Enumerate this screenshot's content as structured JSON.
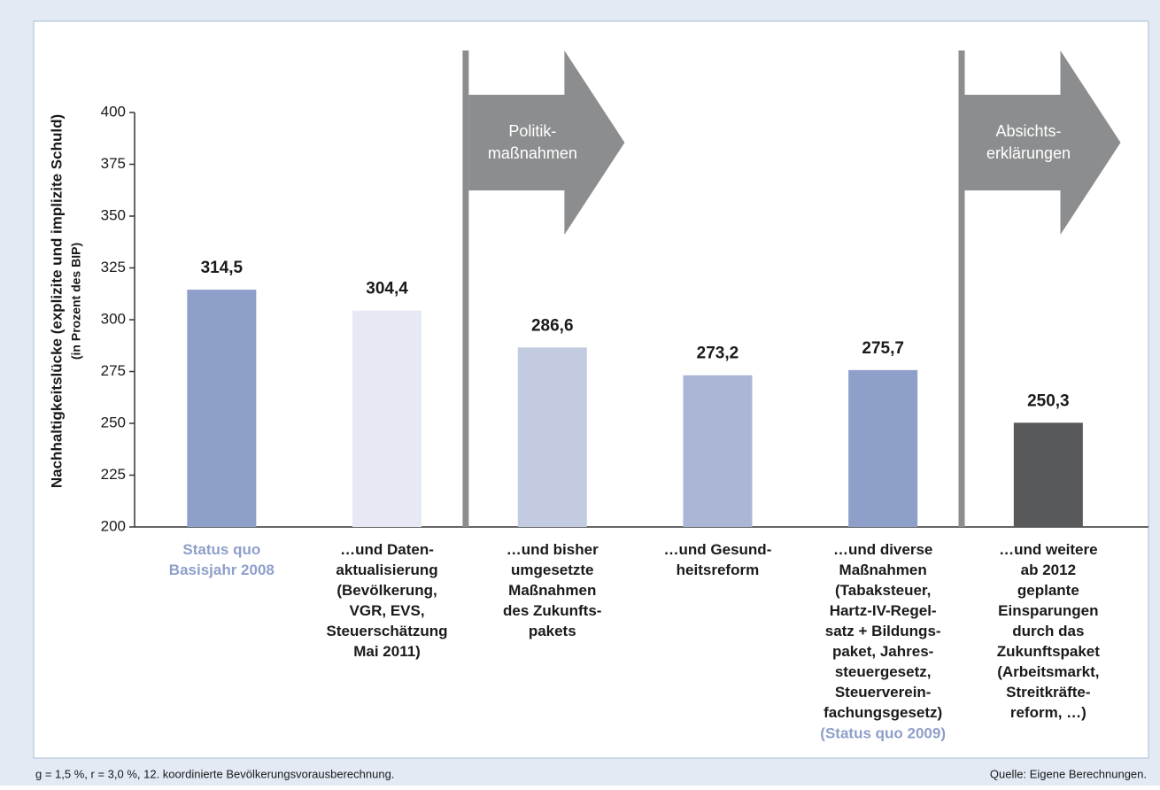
{
  "chart_data": {
    "type": "bar",
    "ylabel": "Nachhaltigkeitslücke (explizite und implizite Schuld)",
    "ysublabel": "(in Prozent des BIP)",
    "categories": [
      "Status quo\nBasisjahr 2008",
      "…und Daten-\naktualisierung\n(Bevölkerung,\nVGR, EVS,\nSteuerschätzung\nMai 2011)",
      "…und bisher\numgesetzte\nMaßnahmen\ndes Zukunfts-\npakets",
      "…und Gesund-\nheitsreform",
      "…und diverse\nMaßnahmen\n(Tabaksteuer,\nHartz-IV-Regel-\nsatz + Bildungs-\npaket, Jahres-\nsteuergesetz,\nSteuerverein-\nfachungsgesetz)",
      "…und weitere\nab 2012\ngeplante\nEinsparungen\ndurch das\nZukunftspaket\n(Arbeitsmarkt,\nStreitkräfte-\nreform, …)"
    ],
    "category_note": "(Status quo 2009)",
    "values": [
      314.5,
      304.4,
      286.6,
      273.2,
      275.7,
      250.3
    ],
    "value_labels": [
      "314,5",
      "304,4",
      "286,6",
      "273,2",
      "275,7",
      "250,3"
    ],
    "colors": [
      "#8e9fc9",
      "#e6e9f3",
      "#c3cbe1",
      "#abb6d7",
      "#8e9fc9",
      "#58595b"
    ],
    "ylim": [
      200,
      400
    ],
    "yticks": [
      200,
      225,
      250,
      275,
      300,
      325,
      350,
      375,
      400
    ],
    "phases": [
      "Politik-\nmaßnahmen",
      "Absichts-\nerklärungen"
    ],
    "footnote": "g = 1,5 %, r = 3,0 %, 12. koordinierte Bevölkerungsvorausberechnung.",
    "source": "Quelle: Eigene Berechnungen."
  }
}
